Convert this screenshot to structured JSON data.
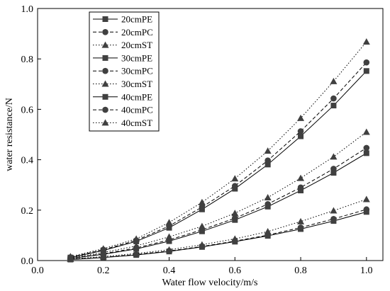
{
  "chart_data": {
    "type": "line",
    "xlabel": "Water flow velocity/m/s",
    "ylabel": "water resistance/N",
    "xlim": [
      0.0,
      1.05
    ],
    "ylim": [
      0.0,
      1.0
    ],
    "x_ticks": [
      "0.0",
      "0.2",
      "0.4",
      "0.6",
      "0.8",
      "1.0"
    ],
    "y_ticks": [
      "0.0",
      "0.2",
      "0.4",
      "0.6",
      "0.8",
      "1.0"
    ],
    "x_tick_values": [
      0.0,
      0.2,
      0.4,
      0.6,
      0.8,
      1.0
    ],
    "y_tick_values": [
      0.0,
      0.2,
      0.4,
      0.6,
      0.8,
      1.0
    ],
    "legend_position": "top-left",
    "x": [
      0.1,
      0.2,
      0.3,
      0.4,
      0.5,
      0.6,
      0.7,
      0.8,
      0.9,
      1.0
    ],
    "series": [
      {
        "name": "20cmPE",
        "marker": "square",
        "dash": "solid",
        "values": [
          0.004,
          0.012,
          0.022,
          0.036,
          0.054,
          0.075,
          0.098,
          0.125,
          0.157,
          0.193
        ]
      },
      {
        "name": "20cmPC",
        "marker": "circle",
        "dash": "dashed",
        "values": [
          0.005,
          0.013,
          0.024,
          0.038,
          0.056,
          0.077,
          0.101,
          0.131,
          0.165,
          0.203
        ]
      },
      {
        "name": "20cmST",
        "marker": "triangle",
        "dash": "dotted",
        "values": [
          0.006,
          0.016,
          0.028,
          0.043,
          0.063,
          0.086,
          0.115,
          0.155,
          0.198,
          0.243
        ]
      },
      {
        "name": "30cmPE",
        "marker": "square",
        "dash": "solid",
        "values": [
          0.008,
          0.025,
          0.046,
          0.077,
          0.116,
          0.161,
          0.214,
          0.278,
          0.348,
          0.426
        ]
      },
      {
        "name": "30cmPC",
        "marker": "circle",
        "dash": "dashed",
        "values": [
          0.009,
          0.027,
          0.05,
          0.082,
          0.122,
          0.168,
          0.224,
          0.29,
          0.364,
          0.447
        ]
      },
      {
        "name": "30cmST",
        "marker": "triangle",
        "dash": "dotted",
        "values": [
          0.011,
          0.032,
          0.058,
          0.094,
          0.136,
          0.188,
          0.25,
          0.327,
          0.412,
          0.51
        ]
      },
      {
        "name": "40cmPE",
        "marker": "square",
        "dash": "solid",
        "values": [
          0.012,
          0.04,
          0.076,
          0.13,
          0.203,
          0.285,
          0.381,
          0.493,
          0.615,
          0.752
        ]
      },
      {
        "name": "40cmPC",
        "marker": "circle",
        "dash": "dashed",
        "values": [
          0.013,
          0.043,
          0.08,
          0.137,
          0.212,
          0.296,
          0.397,
          0.513,
          0.643,
          0.786
        ]
      },
      {
        "name": "40cmST",
        "marker": "triangle",
        "dash": "dotted",
        "values": [
          0.016,
          0.047,
          0.086,
          0.151,
          0.231,
          0.325,
          0.435,
          0.565,
          0.711,
          0.868
        ]
      }
    ]
  }
}
